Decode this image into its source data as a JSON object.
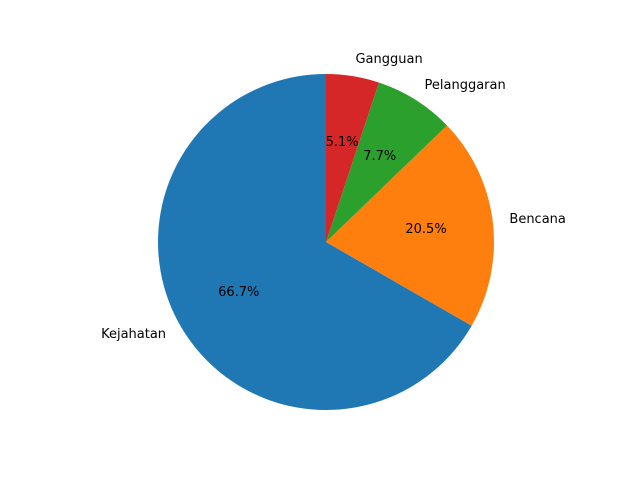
{
  "chart_data": {
    "type": "pie",
    "title": "",
    "categories": [
      "Kejahatan",
      "Bencana",
      "Pelanggaran",
      "Gangguan"
    ],
    "values": [
      66.7,
      20.5,
      7.7,
      5.1
    ],
    "percent_labels": [
      "66.7%",
      "20.5%",
      "7.7%",
      "5.1%"
    ],
    "colors": [
      "#1f77b4",
      "#ff7f0e",
      "#2ca02c",
      "#d62728"
    ],
    "start_angle_deg": 90,
    "direction": "counterclockwise",
    "legend": "none"
  }
}
